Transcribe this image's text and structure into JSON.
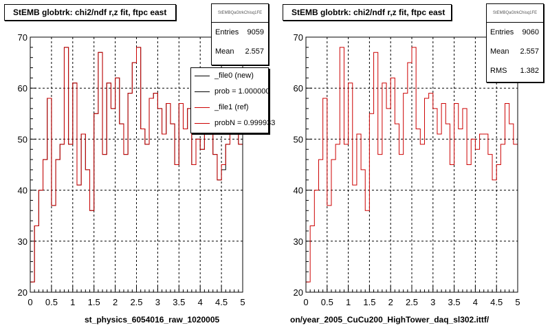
{
  "chart_data": [
    {
      "type": "step-histogram",
      "title": "StEMB globtrk: chi2/ndf r,z fit, ftpc east",
      "xlabel": "st_physics_6054016_raw_1020005",
      "ylabel": "",
      "xlim": [
        0,
        5
      ],
      "ylim": [
        20,
        70
      ],
      "xticks": [
        "0",
        "0.5",
        "1",
        "1.5",
        "2",
        "2.5",
        "3",
        "3.5",
        "4",
        "4.5",
        "5"
      ],
      "yticks": [
        "20",
        "30",
        "40",
        "50",
        "60",
        "70"
      ],
      "grid": true,
      "bin_width": 0.1,
      "series": [
        {
          "name": "_file0 (new)",
          "color": "#000000",
          "values": [
            22,
            33,
            40,
            46,
            58,
            37,
            46,
            49,
            68,
            49,
            61,
            41,
            51,
            44,
            36,
            55,
            67,
            47,
            61,
            56,
            62,
            53,
            47,
            59,
            65,
            68,
            52,
            49,
            58,
            59,
            56,
            51,
            57,
            53,
            45,
            57,
            52,
            56,
            45,
            50,
            48,
            51,
            51,
            47,
            42,
            44,
            49,
            57,
            53,
            49
          ]
        },
        {
          "name": "_file1 (ref)",
          "color": "#cc0000",
          "values": [
            22,
            33,
            40,
            46,
            58,
            37,
            46,
            49,
            68,
            49,
            61,
            41,
            51,
            44,
            36,
            55,
            67,
            47,
            61,
            56,
            62,
            53,
            47,
            59,
            65,
            68,
            52,
            49,
            58,
            59,
            56,
            51,
            57,
            53,
            45,
            57,
            52,
            56,
            45,
            50,
            48,
            51,
            51,
            47,
            42,
            45,
            49,
            57,
            53,
            49
          ]
        }
      ]
    },
    {
      "type": "step-histogram",
      "title": "StEMB globtrk: chi2/ndf r,z fit, ftpc east",
      "xlabel": "on/year_2005_CuCu200_HighTower_daq_sl302.ittf/",
      "ylabel": "",
      "xlim": [
        0,
        5
      ],
      "ylim": [
        20,
        70
      ],
      "xticks": [
        "0",
        "0.5",
        "1",
        "1.5",
        "2",
        "2.5",
        "3",
        "3.5",
        "4",
        "4.5",
        "5"
      ],
      "yticks": [
        "20",
        "30",
        "40",
        "50",
        "60",
        "70"
      ],
      "grid": true,
      "bin_width": 0.1,
      "series": [
        {
          "name": "",
          "color": "#cc0000",
          "values": [
            22,
            33,
            40,
            46,
            58,
            37,
            46,
            49,
            68,
            49,
            61,
            41,
            51,
            44,
            36,
            55,
            67,
            47,
            61,
            56,
            62,
            53,
            47,
            59,
            65,
            68,
            52,
            49,
            58,
            59,
            56,
            51,
            57,
            53,
            45,
            57,
            52,
            56,
            45,
            50,
            48,
            51,
            51,
            47,
            42,
            45,
            49,
            57,
            53,
            49
          ]
        }
      ]
    }
  ],
  "left_panel": {
    "title": "StEMB globtrk: chi2/ndf r,z fit, ftpc east",
    "stats": {
      "name": "StEMBQaGtrkChisq1FE",
      "entries_label": "Entries",
      "entries": "9059",
      "mean_label": "Mean",
      "mean": "2.557"
    },
    "legend": [
      {
        "text": "_file0 (new)",
        "color": "#000000"
      },
      {
        "text": "prob = 1.000000",
        "color": "#000000"
      },
      {
        "text": "_file1 (ref)",
        "color": "#cc0000"
      },
      {
        "text": "probN = 0.999933",
        "color": "#cc0000"
      }
    ],
    "bottom_label": "st_physics_6054016_raw_1020005"
  },
  "right_panel": {
    "title": "StEMB globtrk: chi2/ndf r,z fit, ftpc east",
    "stats": {
      "name": "StEMBQaGtrkChisq1FE",
      "entries_label": "Entries",
      "entries": "9060",
      "mean_label": "Mean",
      "mean": "2.557",
      "rms_label": "RMS",
      "rms": "1.382"
    },
    "bottom_label": "on/year_2005_CuCu200_HighTower_daq_sl302.ittf/"
  }
}
